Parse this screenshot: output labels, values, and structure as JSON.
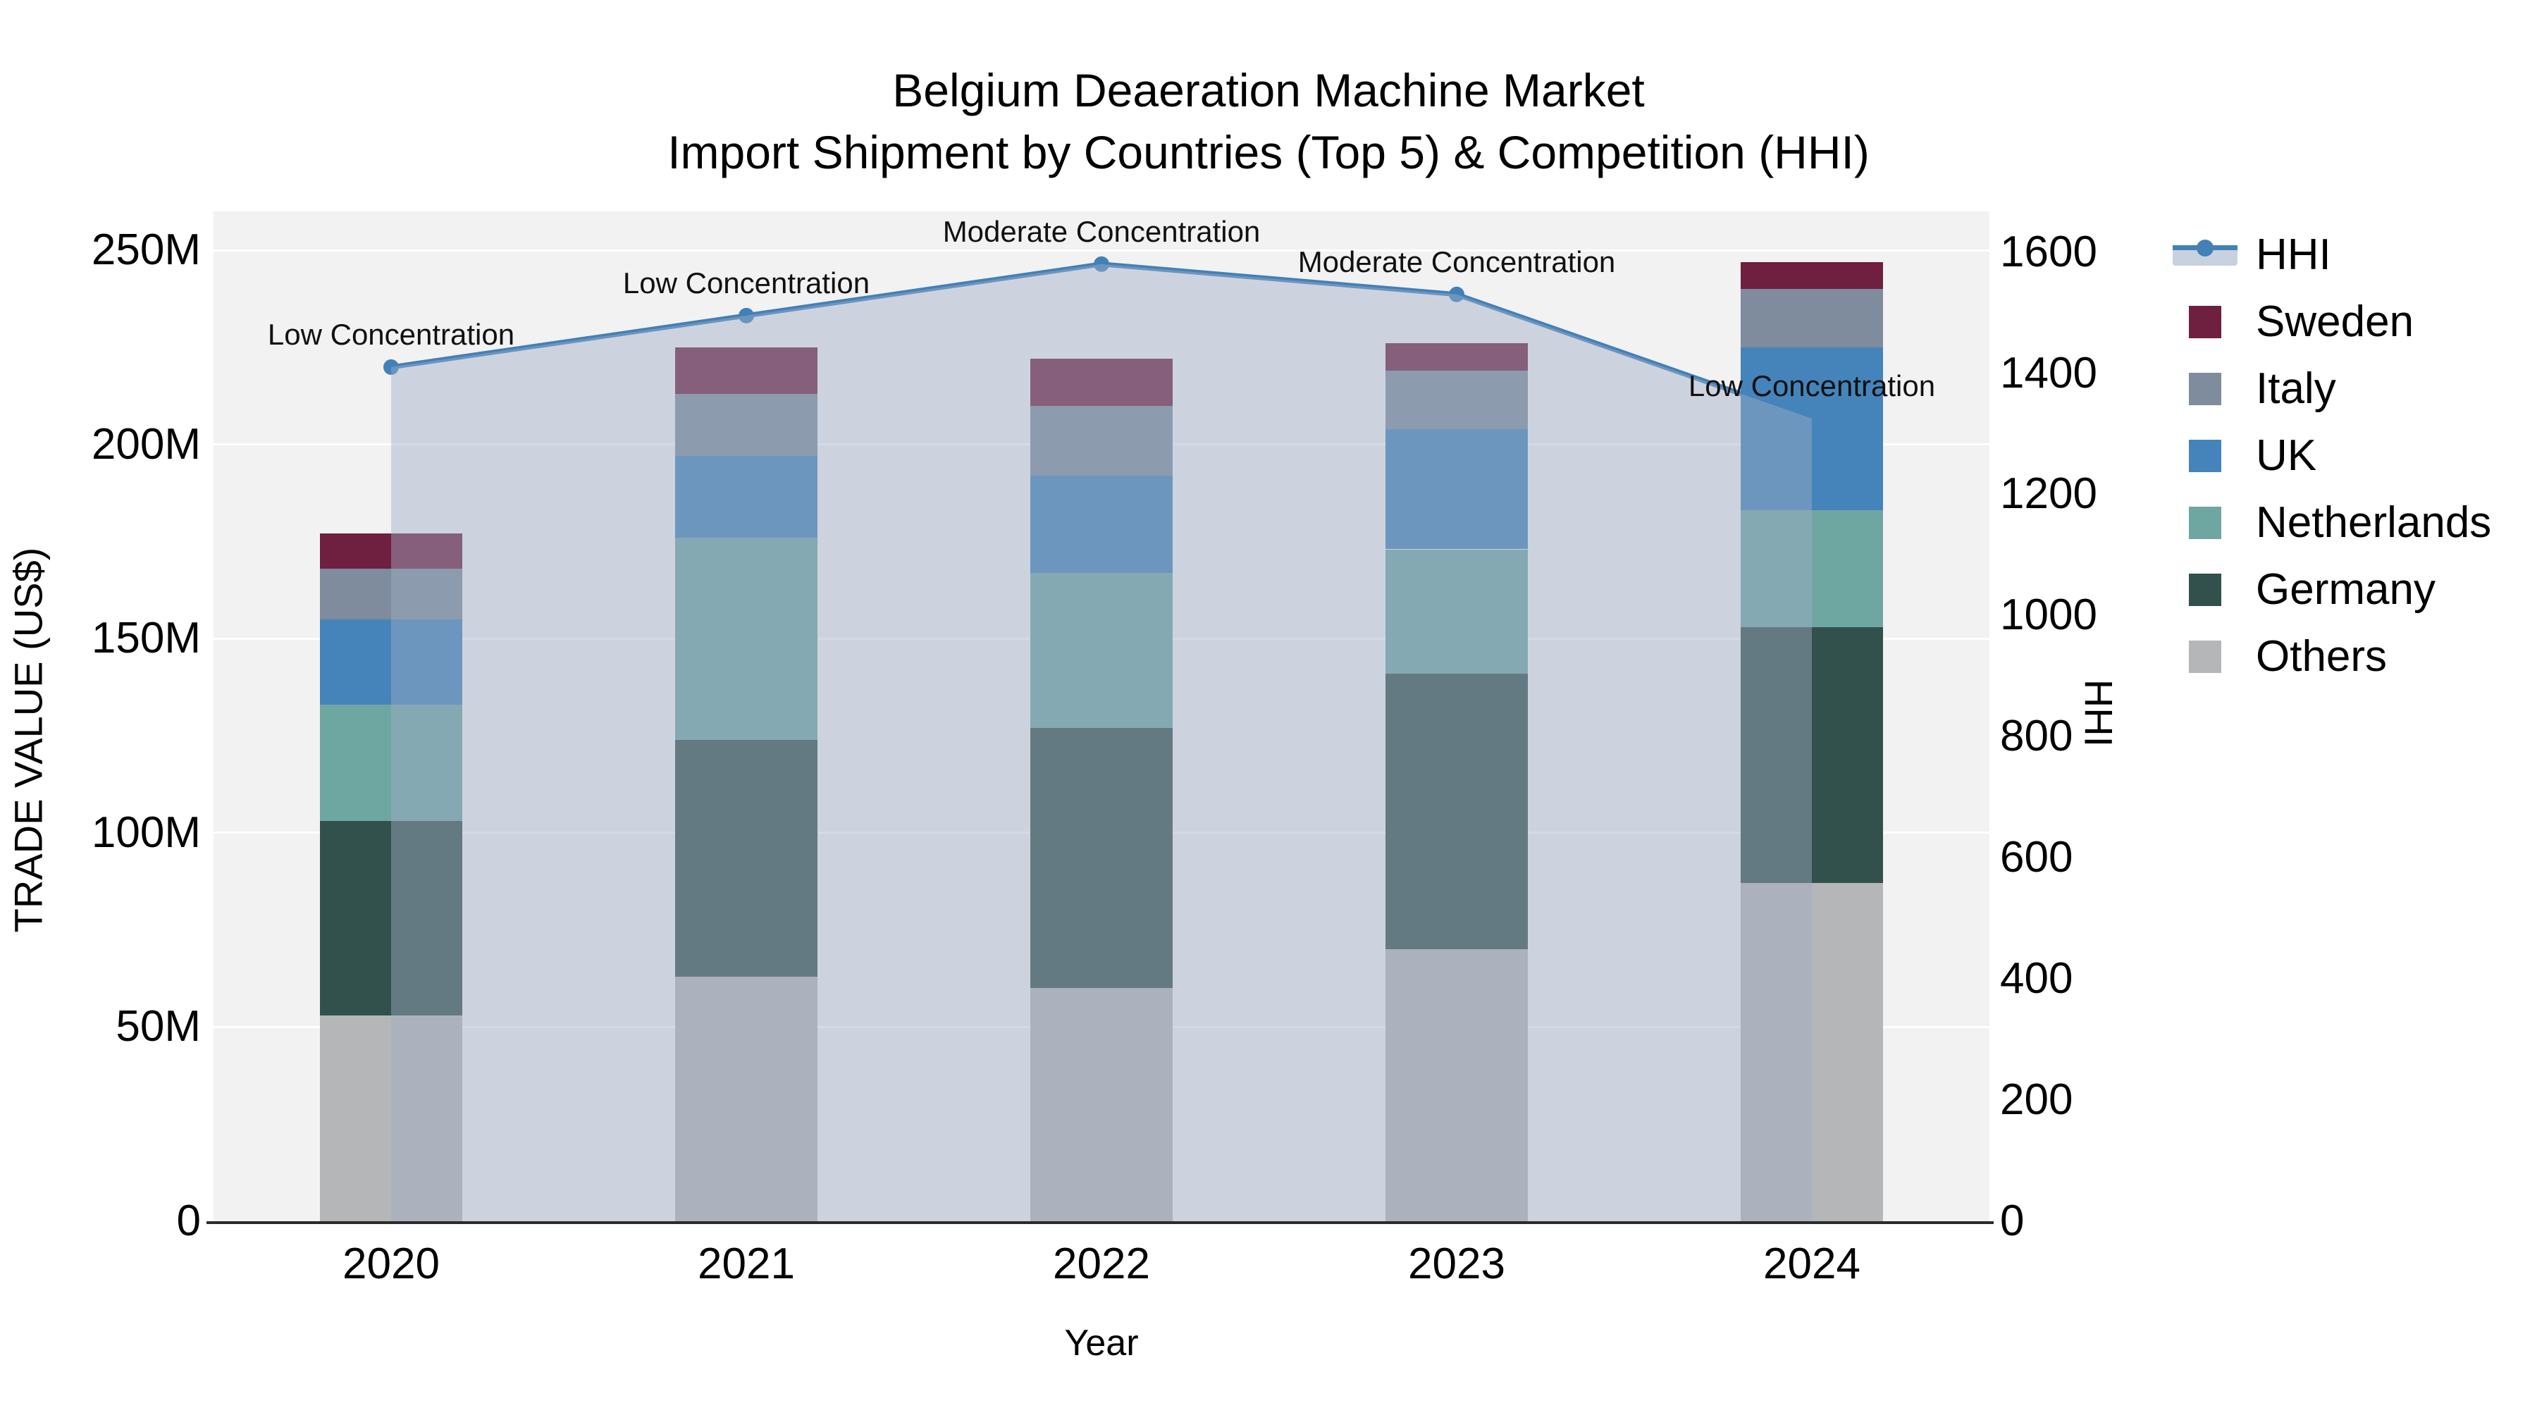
{
  "title": {
    "line1": "Belgium Deaeration Machine Market",
    "line2": "Import Shipment by Countries (Top 5) & Competition (HHI)"
  },
  "axes": {
    "x_title": "Year",
    "y_left_title": "TRADE VALUE (US$)",
    "y_right_title": "HHI",
    "y_left_ticks": [
      {
        "value": 0,
        "label": "0"
      },
      {
        "value": 50,
        "label": "50M"
      },
      {
        "value": 100,
        "label": "100M"
      },
      {
        "value": 150,
        "label": "150M"
      },
      {
        "value": 200,
        "label": "200M"
      },
      {
        "value": 250,
        "label": "250M"
      }
    ],
    "y_right_ticks": [
      {
        "value": 0,
        "label": "0"
      },
      {
        "value": 200,
        "label": "200"
      },
      {
        "value": 400,
        "label": "400"
      },
      {
        "value": 600,
        "label": "600"
      },
      {
        "value": 800,
        "label": "800"
      },
      {
        "value": 1000,
        "label": "1000"
      },
      {
        "value": 1200,
        "label": "1200"
      },
      {
        "value": 1400,
        "label": "1400"
      },
      {
        "value": 1600,
        "label": "1600"
      }
    ]
  },
  "chart_data": {
    "type": "bar",
    "subtype": "stacked-bars-with-hhi-line-and-area",
    "title": "Belgium Deaeration Machine Market — Import Shipment by Countries (Top 5) & Competition (HHI)",
    "xlabel": "Year",
    "ylabel_left": "TRADE VALUE (US$)",
    "ylabel_right": "HHI",
    "categories": [
      "2020",
      "2021",
      "2022",
      "2023",
      "2024"
    ],
    "value_unit": "million US$ (estimated from axis)",
    "series": [
      {
        "name": "Others",
        "color": "#b5b6b8",
        "values": [
          53,
          63,
          60,
          70,
          87
        ]
      },
      {
        "name": "Germany",
        "color": "#33514c",
        "values": [
          50,
          61,
          67,
          71,
          66
        ]
      },
      {
        "name": "Netherlands",
        "color": "#6ea7a2",
        "values": [
          30,
          52,
          40,
          32,
          30
        ]
      },
      {
        "name": "UK",
        "color": "#4484bb",
        "values": [
          22,
          21,
          25,
          31,
          42
        ]
      },
      {
        "name": "Italy",
        "color": "#7e8c9d",
        "values": [
          13,
          16,
          18,
          15,
          15
        ]
      },
      {
        "name": "Sweden",
        "color": "#6f1f3f",
        "values": [
          9,
          12,
          12,
          7,
          7
        ]
      }
    ],
    "bar_totals": [
      177,
      225,
      222,
      226,
      247
    ],
    "line_series": {
      "name": "HHI",
      "axis": "right",
      "color": "#4280b8",
      "area_fill": "rgba(160,173,198,0.45)",
      "values": [
        1410,
        1495,
        1580,
        1530,
        1325
      ],
      "annotations": [
        "Low Concentration",
        "Low Concentration",
        "Moderate Concentration",
        "Moderate Concentration",
        "Low Concentration"
      ]
    },
    "ylim_left": [
      0,
      260
    ],
    "ylim_right": [
      0,
      1667
    ],
    "grid": "horizontal white gridlines at left-axis ticks",
    "legend_position": "right"
  },
  "legend": {
    "items": [
      {
        "label": "HHI",
        "type": "line",
        "color": "#4280b8"
      },
      {
        "label": "Sweden",
        "type": "swatch",
        "color": "#6f1f3f"
      },
      {
        "label": "Italy",
        "type": "swatch",
        "color": "#7e8c9d"
      },
      {
        "label": "UK",
        "type": "swatch",
        "color": "#4484bb"
      },
      {
        "label": "Netherlands",
        "type": "swatch",
        "color": "#6ea7a2"
      },
      {
        "label": "Germany",
        "type": "swatch",
        "color": "#33514c"
      },
      {
        "label": "Others",
        "type": "swatch",
        "color": "#b5b6b8"
      }
    ]
  }
}
